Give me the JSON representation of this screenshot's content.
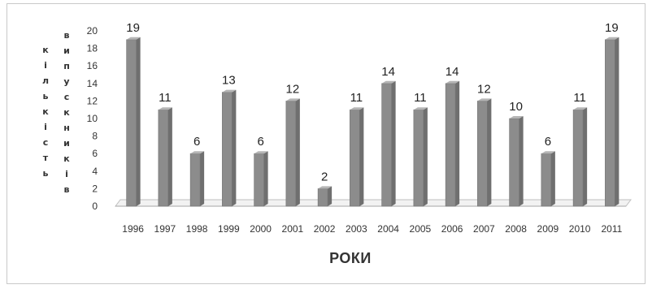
{
  "chart_data": {
    "type": "bar",
    "title": "",
    "xlabel": "РОКИ",
    "ylabel_col1": [
      "к",
      "і",
      "л",
      "ь",
      "к",
      "і",
      "с",
      "т",
      "ь"
    ],
    "ylabel_col2": [
      "в",
      "и",
      "п",
      "у",
      "с",
      "к",
      "н",
      "и",
      "к",
      "і",
      "в"
    ],
    "categories": [
      "1996",
      "1997",
      "1998",
      "1999",
      "2000",
      "2001",
      "2002",
      "2003",
      "2004",
      "2005",
      "2006",
      "2007",
      "2008",
      "2009",
      "2010",
      "2011"
    ],
    "values": [
      19,
      11,
      6,
      13,
      6,
      12,
      2,
      11,
      14,
      11,
      14,
      12,
      10,
      6,
      11,
      19
    ],
    "ylim": [
      0,
      20
    ],
    "yticks": [
      "0",
      "2",
      "4",
      "6",
      "8",
      "10",
      "12",
      "14",
      "16",
      "18",
      "20"
    ],
    "grid": false,
    "data_labels": true,
    "bar_color": "#8c8c8c"
  }
}
